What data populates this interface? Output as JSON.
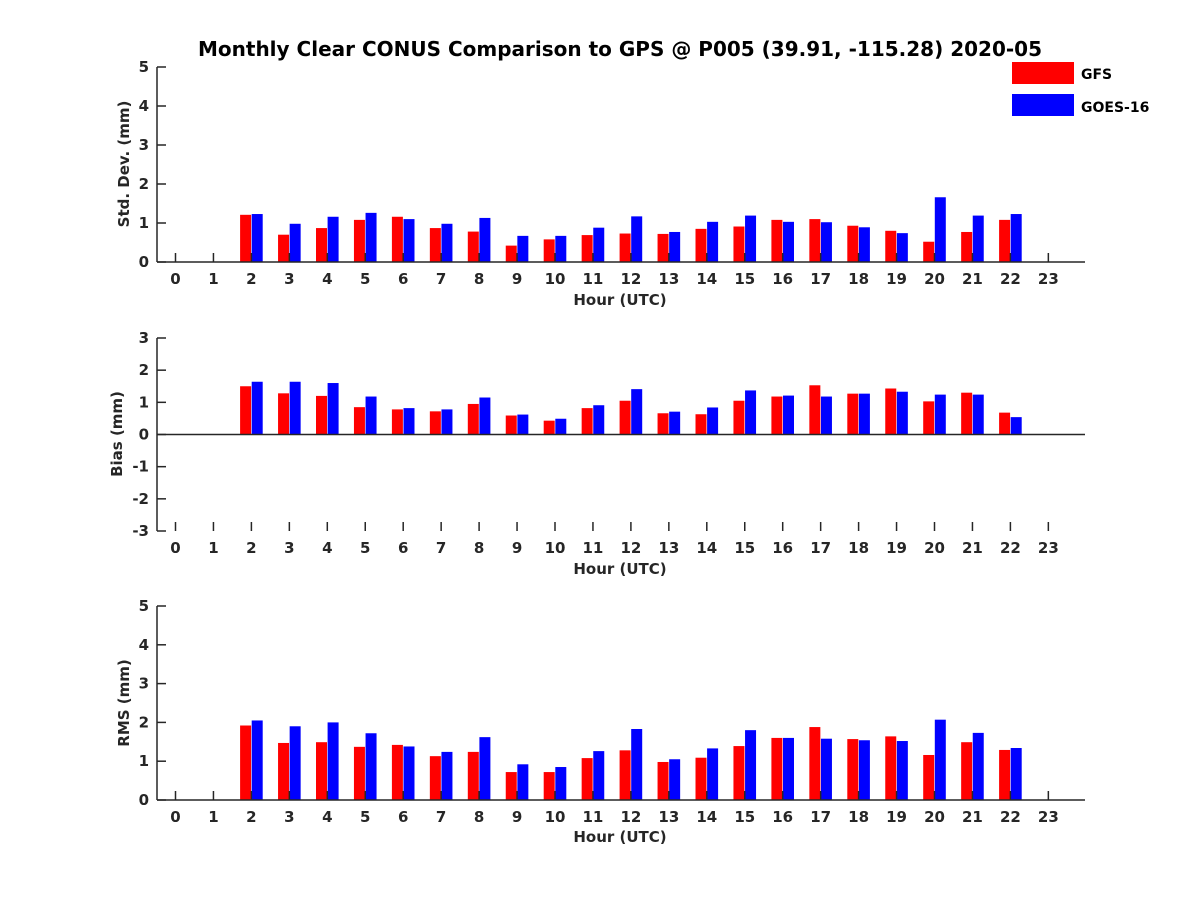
{
  "title": "Monthly Clear CONUS Comparison to GPS @ P005 (39.91, -115.28) 2020-05",
  "legend": [
    {
      "name": "GFS",
      "color": "#ff0000"
    },
    {
      "name": "GOES-16",
      "color": "#0000ff"
    }
  ],
  "chart_data": [
    {
      "type": "bar",
      "ylabel": "Std. Dev. (mm)",
      "xlabel": "Hour (UTC)",
      "ylim": [
        0,
        5
      ],
      "yticks": [
        0,
        1,
        2,
        3,
        4,
        5
      ],
      "categories": [
        0,
        1,
        2,
        3,
        4,
        5,
        6,
        7,
        8,
        9,
        10,
        11,
        12,
        13,
        14,
        15,
        16,
        17,
        18,
        19,
        20,
        21,
        22,
        23
      ],
      "series": [
        {
          "name": "GFS",
          "values": [
            null,
            null,
            1.21,
            0.7,
            0.87,
            1.08,
            1.16,
            0.87,
            0.78,
            0.42,
            0.58,
            0.69,
            0.73,
            0.72,
            0.85,
            0.91,
            1.08,
            1.1,
            0.93,
            0.8,
            0.52,
            0.77,
            1.08,
            null
          ]
        },
        {
          "name": "GOES-16",
          "values": [
            null,
            null,
            1.23,
            0.98,
            1.16,
            1.26,
            1.1,
            0.98,
            1.13,
            0.67,
            0.67,
            0.88,
            1.17,
            0.77,
            1.03,
            1.19,
            1.03,
            1.02,
            0.89,
            0.74,
            1.66,
            1.19,
            1.23,
            null
          ]
        }
      ]
    },
    {
      "type": "bar",
      "ylabel": "Bias (mm)",
      "xlabel": "Hour (UTC)",
      "ylim": [
        -3,
        3
      ],
      "yticks": [
        -3,
        -2,
        -1,
        0,
        1,
        2,
        3
      ],
      "categories": [
        0,
        1,
        2,
        3,
        4,
        5,
        6,
        7,
        8,
        9,
        10,
        11,
        12,
        13,
        14,
        15,
        16,
        17,
        18,
        19,
        20,
        21,
        22,
        23
      ],
      "series": [
        {
          "name": "GFS",
          "values": [
            null,
            null,
            1.5,
            1.28,
            1.2,
            0.85,
            0.78,
            0.72,
            0.95,
            0.59,
            0.43,
            0.82,
            1.05,
            0.66,
            0.63,
            1.05,
            1.18,
            1.53,
            1.27,
            1.43,
            1.03,
            1.3,
            0.68,
            null
          ]
        },
        {
          "name": "GOES-16",
          "values": [
            null,
            null,
            1.64,
            1.64,
            1.6,
            1.18,
            0.82,
            0.78,
            1.15,
            0.62,
            0.49,
            0.91,
            1.41,
            0.71,
            0.84,
            1.37,
            1.21,
            1.18,
            1.27,
            1.33,
            1.24,
            1.24,
            0.54,
            null
          ]
        }
      ]
    },
    {
      "type": "bar",
      "ylabel": "RMS (mm)",
      "xlabel": "Hour (UTC)",
      "ylim": [
        0,
        5
      ],
      "yticks": [
        0,
        1,
        2,
        3,
        4,
        5
      ],
      "categories": [
        0,
        1,
        2,
        3,
        4,
        5,
        6,
        7,
        8,
        9,
        10,
        11,
        12,
        13,
        14,
        15,
        16,
        17,
        18,
        19,
        20,
        21,
        22,
        23
      ],
      "series": [
        {
          "name": "GFS",
          "values": [
            null,
            null,
            1.92,
            1.47,
            1.49,
            1.37,
            1.42,
            1.13,
            1.24,
            0.72,
            0.72,
            1.08,
            1.28,
            0.98,
            1.09,
            1.39,
            1.6,
            1.88,
            1.57,
            1.64,
            1.16,
            1.49,
            1.29,
            null
          ]
        },
        {
          "name": "GOES-16",
          "values": [
            null,
            null,
            2.05,
            1.9,
            2.0,
            1.72,
            1.38,
            1.24,
            1.62,
            0.92,
            0.85,
            1.26,
            1.83,
            1.05,
            1.33,
            1.8,
            1.6,
            1.58,
            1.54,
            1.52,
            2.07,
            1.73,
            1.34,
            null
          ]
        }
      ]
    }
  ]
}
